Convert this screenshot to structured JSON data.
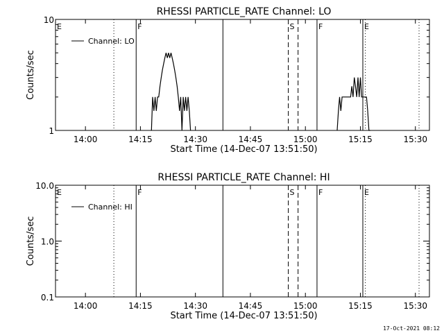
{
  "colors": {
    "background": "#ffffff",
    "foreground": "#000000"
  },
  "footer": {
    "timestamp": "17-Oct-2021 08:12"
  },
  "chart_data": [
    {
      "type": "line",
      "title": "RHESSI PARTICLE_RATE Channel: LO",
      "xlabel": "Start Time (14-Dec-07 13:51:50)",
      "ylabel": "Counts/sec",
      "yscale": "log",
      "xlim": [
        "13:51:50",
        "15:33:50"
      ],
      "ylim": [
        1,
        10
      ],
      "xticks": [
        "14:00",
        "14:15",
        "14:30",
        "14:45",
        "15:00",
        "15:15",
        "15:30"
      ],
      "yticks": [
        {
          "value": 1,
          "label": "1"
        },
        {
          "value": 10,
          "label": "10"
        }
      ],
      "legend": {
        "placement": "top-left",
        "entries": [
          "Channel: LO"
        ]
      },
      "markers": [
        {
          "time": "13:51:50",
          "style": "none",
          "label": "E"
        },
        {
          "time": "14:07:45",
          "style": "dotted",
          "label": ""
        },
        {
          "time": "14:13:50",
          "style": "solid",
          "label": "F"
        },
        {
          "time": "14:37:30",
          "style": "solid",
          "label": ""
        },
        {
          "time": "14:55:20",
          "style": "dashed",
          "label": "S"
        },
        {
          "time": "14:58:00",
          "style": "dashed",
          "label": ""
        },
        {
          "time": "15:03:10",
          "style": "solid",
          "label": "F"
        },
        {
          "time": "15:15:40",
          "style": "solid",
          "label": "E"
        },
        {
          "time": "15:16:20",
          "style": "dotted",
          "label": ""
        },
        {
          "time": "15:31:00",
          "style": "dotted",
          "label": ""
        }
      ],
      "series": [
        {
          "name": "Channel: LO",
          "segments": [
            {
              "x": [
                "14:18:00",
                "14:18:20",
                "14:18:40",
                "14:19:00",
                "14:19:20",
                "14:19:40",
                "14:20:00",
                "14:20:20",
                "14:20:40",
                "14:21:00",
                "14:21:20",
                "14:21:40",
                "14:22:00",
                "14:22:20",
                "14:22:40",
                "14:23:00",
                "14:23:20",
                "14:23:40",
                "14:24:00",
                "14:24:20",
                "14:24:40",
                "14:25:00",
                "14:25:20",
                "14:25:40",
                "14:26:00",
                "14:26:20",
                "14:26:40",
                "14:27:00",
                "14:27:20",
                "14:27:40",
                "14:28:00",
                "14:28:20",
                "14:28:40"
              ],
              "y": [
                1,
                2,
                1.5,
                2,
                1.5,
                2,
                2,
                2.5,
                3,
                3.5,
                4,
                4.5,
                5,
                4.5,
                5,
                4.5,
                5,
                4.5,
                4,
                3.5,
                3,
                2.5,
                2,
                1.5,
                2,
                1,
                2,
                1.5,
                2,
                1.5,
                2,
                1.5,
                1
              ]
            },
            {
              "x": [
                "15:08:40",
                "15:09:00",
                "15:09:20",
                "15:09:40",
                "15:10:00",
                "15:10:20",
                "15:10:40",
                "15:11:00",
                "15:11:20",
                "15:11:40",
                "15:12:00",
                "15:12:20",
                "15:12:40",
                "15:13:00",
                "15:13:20",
                "15:13:40",
                "15:14:00",
                "15:14:20",
                "15:14:40",
                "15:15:00",
                "15:15:20",
                "15:15:40",
                "15:16:00",
                "15:16:20",
                "15:16:40",
                "15:17:00",
                "15:17:20",
                "15:17:40"
              ],
              "y": [
                1,
                1.5,
                2,
                1.5,
                2,
                2,
                2,
                2,
                2,
                2,
                2,
                2,
                2.5,
                2,
                3,
                2.5,
                2,
                3,
                2,
                3,
                2,
                2,
                2,
                2,
                2,
                1.5,
                1,
                1
              ]
            }
          ]
        }
      ]
    },
    {
      "type": "line",
      "title": "RHESSI PARTICLE_RATE Channel: HI",
      "xlabel": "Start Time (14-Dec-07 13:51:50)",
      "ylabel": "Counts/sec",
      "yscale": "log",
      "xlim": [
        "13:51:50",
        "15:33:50"
      ],
      "ylim": [
        0.1,
        10
      ],
      "xticks": [
        "14:00",
        "14:15",
        "14:30",
        "14:45",
        "15:00",
        "15:15",
        "15:30"
      ],
      "yticks": [
        {
          "value": 0.1,
          "label": "0.1"
        },
        {
          "value": 1,
          "label": "1.0"
        },
        {
          "value": 10,
          "label": "10.0"
        }
      ],
      "legend": {
        "placement": "top-left",
        "entries": [
          "Channel: HI"
        ]
      },
      "markers": [
        {
          "time": "13:51:50",
          "style": "none",
          "label": "E"
        },
        {
          "time": "14:07:45",
          "style": "dotted",
          "label": ""
        },
        {
          "time": "14:13:50",
          "style": "solid",
          "label": "F"
        },
        {
          "time": "14:37:30",
          "style": "solid",
          "label": ""
        },
        {
          "time": "14:55:20",
          "style": "dashed",
          "label": "S"
        },
        {
          "time": "14:58:00",
          "style": "dashed",
          "label": ""
        },
        {
          "time": "15:03:10",
          "style": "solid",
          "label": "F"
        },
        {
          "time": "15:15:40",
          "style": "solid",
          "label": "E"
        },
        {
          "time": "15:16:20",
          "style": "dotted",
          "label": ""
        },
        {
          "time": "15:31:00",
          "style": "dotted",
          "label": ""
        }
      ],
      "series": [
        {
          "name": "Channel: HI",
          "segments": []
        }
      ]
    }
  ]
}
